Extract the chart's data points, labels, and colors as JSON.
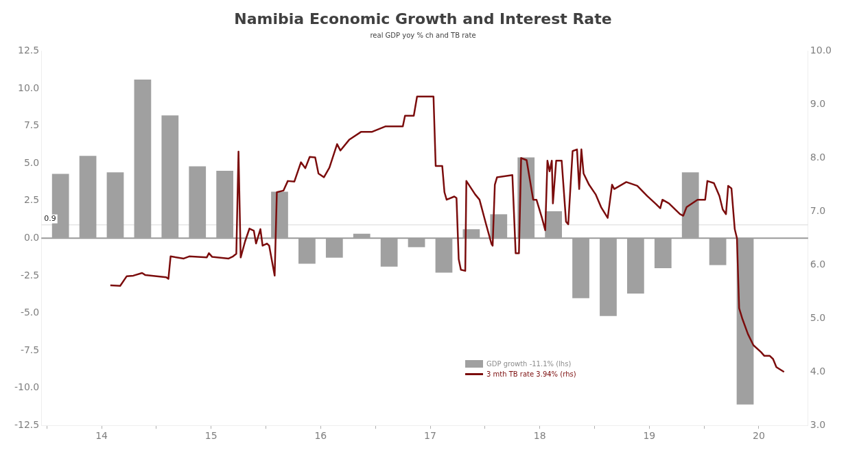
{
  "chart_data": {
    "type": "bar",
    "title": "Namibia Economic Growth and Interest Rate",
    "subtitle": "real GDP yoy % ch and TB rate",
    "x": [
      14.125,
      14.375,
      14.625,
      14.875,
      15.125,
      15.375,
      15.625,
      15.875,
      16.125,
      16.375,
      16.625,
      16.875,
      17.125,
      17.375,
      17.625,
      17.875,
      18.125,
      18.375,
      18.625,
      18.875,
      19.125,
      19.375,
      19.625,
      19.875,
      20.125,
      20.375
    ],
    "xlim": [
      13.95,
      20.95
    ],
    "xticks": [
      {
        "value": 14,
        "label": null
      },
      {
        "value": 14.5,
        "label": "14"
      },
      {
        "value": 15,
        "label": null
      },
      {
        "value": 15.5,
        "label": "15"
      },
      {
        "value": 16,
        "label": null
      },
      {
        "value": 16.5,
        "label": "16"
      },
      {
        "value": 17,
        "label": null
      },
      {
        "value": 17.5,
        "label": "17"
      },
      {
        "value": 18,
        "label": null
      },
      {
        "value": 18.5,
        "label": "18"
      },
      {
        "value": 19,
        "label": null
      },
      {
        "value": 19.5,
        "label": "19"
      },
      {
        "value": 20,
        "label": null
      },
      {
        "value": 20.5,
        "label": "20"
      }
    ],
    "ylim": [
      -12.5,
      12.5
    ],
    "yticks": [
      -12.5,
      {
        "value": -10,
        "label": "-10.0"
      },
      -7.5,
      {
        "value": -5,
        "label": "-5.0"
      },
      -2.5,
      {
        "value": 0,
        "label": "0.0"
      },
      2.5,
      {
        "value": 5,
        "label": "5.0"
      },
      7.5,
      {
        "value": 10,
        "label": "10.0"
      },
      12.5
    ],
    "y2lim": [
      3,
      10
    ],
    "y2ticks": [
      {
        "value": 3,
        "label": "3.0"
      },
      {
        "value": 4,
        "label": "4.0"
      },
      {
        "value": 5,
        "label": "5.0"
      },
      {
        "value": 6,
        "label": "6.0"
      },
      {
        "value": 7,
        "label": "7.0"
      },
      {
        "value": 8,
        "label": "8.0"
      },
      {
        "value": 9,
        "label": "9.0"
      },
      {
        "value": 10,
        "label": "10.0"
      }
    ],
    "series": [
      {
        "name": "GDP growth -11.1% (lhs)",
        "color": "#a0a0a0",
        "values": [
          4.3,
          5.5,
          4.4,
          10.6,
          8.2,
          4.8,
          4.5,
          null,
          3.1,
          -1.7,
          -1.3,
          0.3,
          -1.9,
          -0.6,
          -2.3,
          0.6,
          1.6,
          5.4,
          1.8,
          -4.0,
          -5.2,
          -3.7,
          -2.0,
          4.4,
          -1.8,
          -11.1
        ]
      },
      {
        "name": "3 mth TB rate 3.94% (rhs)",
        "type": "line",
        "axis": "y2",
        "color": "#7b0c0c",
        "x": [
          14.58,
          14.67,
          14.73,
          14.79,
          14.87,
          14.9,
          15.09,
          15.11,
          15.13,
          15.25,
          15.3,
          15.46,
          15.48,
          15.51,
          15.66,
          15.7,
          15.73,
          15.75,
          15.77,
          15.81,
          15.85,
          15.89,
          15.91,
          15.95,
          15.97,
          16.01,
          16.03,
          16.08,
          16.1,
          16.16,
          16.2,
          16.26,
          16.32,
          16.36,
          16.4,
          16.45,
          16.48,
          16.53,
          16.58,
          16.65,
          16.68,
          16.76,
          16.87,
          16.97,
          17.09,
          17.25,
          17.27,
          17.35,
          17.38,
          17.53,
          17.55,
          17.61,
          17.63,
          17.65,
          17.72,
          17.74,
          17.76,
          17.78,
          17.82,
          17.83,
          17.91,
          17.95,
          18.01,
          18.06,
          18.07,
          18.09,
          18.11,
          18.25,
          18.28,
          18.31,
          18.33,
          18.38,
          18.44,
          18.47,
          18.52,
          18.55,
          18.57,
          18.59,
          18.61,
          18.62,
          18.65,
          18.7,
          18.74,
          18.76,
          18.8,
          18.84,
          18.86,
          18.88,
          18.9,
          18.95,
          19.01,
          19.06,
          19.12,
          19.16,
          19.18,
          19.29,
          19.39,
          19.48,
          19.56,
          19.6,
          19.62,
          19.68,
          19.78,
          19.81,
          19.84,
          19.94,
          20.01,
          20.03,
          20.09,
          20.14,
          20.17,
          20.2,
          20.22,
          20.25,
          20.28,
          20.3,
          20.32,
          20.35,
          20.4,
          20.45,
          20.52,
          20.55,
          20.6,
          20.63,
          20.66,
          20.73
        ],
        "values": [
          5.62,
          5.61,
          5.79,
          5.8,
          5.85,
          5.81,
          5.77,
          5.74,
          6.16,
          6.12,
          6.16,
          6.14,
          6.22,
          6.15,
          6.12,
          6.16,
          6.21,
          8.12,
          6.14,
          6.44,
          6.68,
          6.64,
          6.4,
          6.67,
          6.36,
          6.4,
          6.36,
          5.8,
          7.36,
          7.39,
          7.57,
          7.56,
          7.92,
          7.81,
          8.02,
          8.01,
          7.71,
          7.64,
          7.82,
          8.26,
          8.14,
          8.34,
          8.49,
          8.49,
          8.59,
          8.59,
          8.79,
          8.79,
          9.15,
          9.15,
          7.85,
          7.85,
          7.36,
          7.22,
          7.28,
          7.25,
          6.11,
          5.91,
          5.89,
          7.57,
          7.32,
          7.22,
          6.76,
          6.39,
          6.36,
          7.5,
          7.64,
          7.68,
          6.22,
          6.22,
          8.0,
          7.96,
          7.22,
          7.22,
          6.88,
          6.65,
          7.95,
          7.75,
          7.95,
          7.15,
          7.95,
          7.95,
          6.81,
          6.76,
          8.13,
          8.16,
          7.42,
          8.16,
          7.71,
          7.5,
          7.32,
          7.08,
          6.88,
          7.5,
          7.42,
          7.55,
          7.48,
          7.29,
          7.14,
          7.06,
          7.22,
          7.15,
          6.95,
          6.92,
          7.08,
          7.22,
          7.22,
          7.57,
          7.53,
          7.29,
          7.04,
          6.95,
          7.48,
          7.43,
          6.67,
          6.5,
          5.19,
          4.99,
          4.71,
          4.5,
          4.37,
          4.3,
          4.3,
          4.24,
          4.09,
          4.0
        ]
      }
    ],
    "ref_lines": [
      {
        "axis": "y",
        "value": 0.9,
        "label": "0.9",
        "color": "#e6e6e6"
      }
    ],
    "legend": "bottom"
  }
}
